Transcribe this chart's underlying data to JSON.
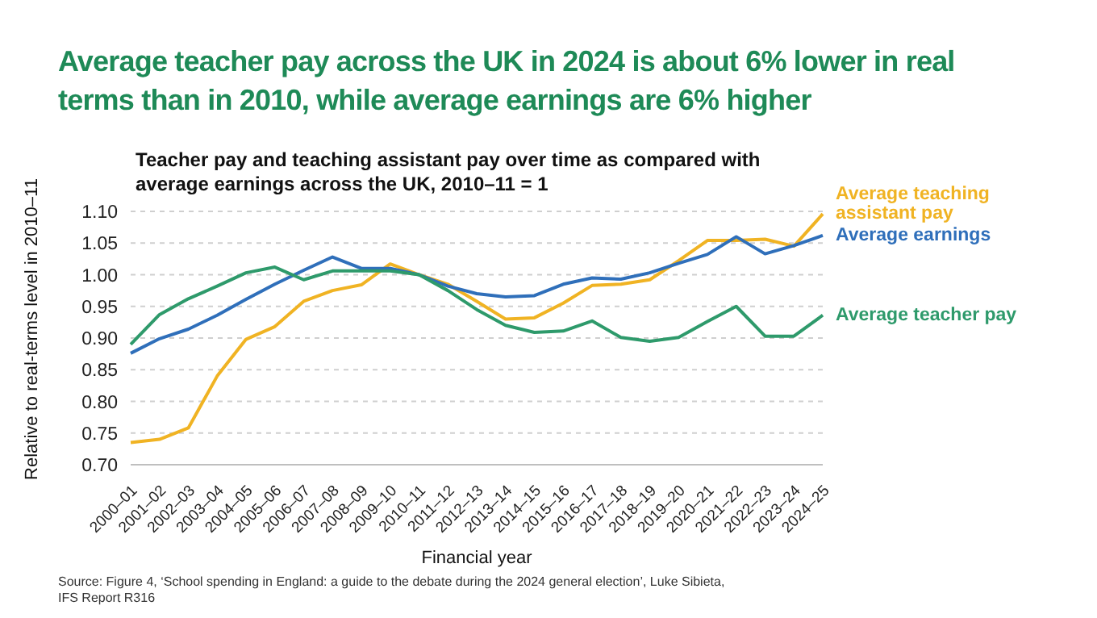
{
  "chart_data": {
    "type": "line",
    "title": "Average teacher pay across the UK in 2024 is about 6% lower in real terms than in 2010, while average earnings are 6% higher",
    "subtitle": "Teacher pay and teaching assistant pay over time as compared with average earnings across the UK, 2010–11 = 1",
    "xlabel": "Financial year",
    "ylabel": "Relative to real-terms level in 2010–11",
    "annotations": [
      "Source: Figure 4, ‘School spending in England: a guide to the debate during the 2024 general election’, Luke Sibieta, IFS Report R316"
    ],
    "categories": [
      "2000–01",
      "2001–02",
      "2002–03",
      "2003–04",
      "2004–05",
      "2005–06",
      "2006–07",
      "2007–08",
      "2008–09",
      "2009–10",
      "2010–11",
      "2011–12",
      "2012–13",
      "2013–14",
      "2014–15",
      "2015–16",
      "2016–17",
      "2017–18",
      "2018–19",
      "2019–20",
      "2020–21",
      "2021–22",
      "2022–23",
      "2023–24",
      "2024–25"
    ],
    "series": [
      {
        "name": "Average teaching assistant pay",
        "color": "#f0b323",
        "values": [
          0.735,
          0.74,
          0.758,
          0.84,
          0.898,
          0.918,
          0.958,
          0.975,
          0.984,
          1.017,
          1.0,
          0.985,
          0.958,
          0.93,
          0.932,
          0.955,
          0.983,
          0.985,
          0.992,
          1.022,
          1.054,
          1.054,
          1.056,
          1.045,
          1.096
        ]
      },
      {
        "name": "Average earnings",
        "color": "#2f6fba",
        "values": [
          0.876,
          0.899,
          0.914,
          0.936,
          0.961,
          0.985,
          1.007,
          1.028,
          1.01,
          1.01,
          1.0,
          0.982,
          0.97,
          0.965,
          0.967,
          0.985,
          0.995,
          0.993,
          1.003,
          1.018,
          1.032,
          1.06,
          1.033,
          1.046,
          1.062
        ]
      },
      {
        "name": "Average teacher pay",
        "color": "#2e9a6b",
        "values": [
          0.89,
          0.937,
          0.962,
          0.982,
          1.003,
          1.012,
          0.992,
          1.006,
          1.006,
          1.006,
          1.0,
          0.975,
          0.945,
          0.92,
          0.909,
          0.911,
          0.927,
          0.901,
          0.895,
          0.901,
          0.926,
          0.95,
          0.903,
          0.903,
          0.936
        ]
      }
    ],
    "ylim": [
      0.7,
      1.1
    ],
    "yticks": [
      {
        "value": 0.7,
        "label": "0.70"
      },
      {
        "value": 0.75,
        "label": "0.75"
      },
      {
        "value": 0.8,
        "label": "0.80"
      },
      {
        "value": 0.85,
        "label": "0.85"
      },
      {
        "value": 0.9,
        "label": "0.90"
      },
      {
        "value": 0.95,
        "label": "0.95"
      },
      {
        "value": 1.0,
        "label": "1.00"
      },
      {
        "value": 1.05,
        "label": "1.05"
      },
      {
        "value": 1.1,
        "label": "1.10"
      }
    ],
    "grid": "y",
    "legend": false,
    "marker": "none",
    "line_style": "solid"
  }
}
